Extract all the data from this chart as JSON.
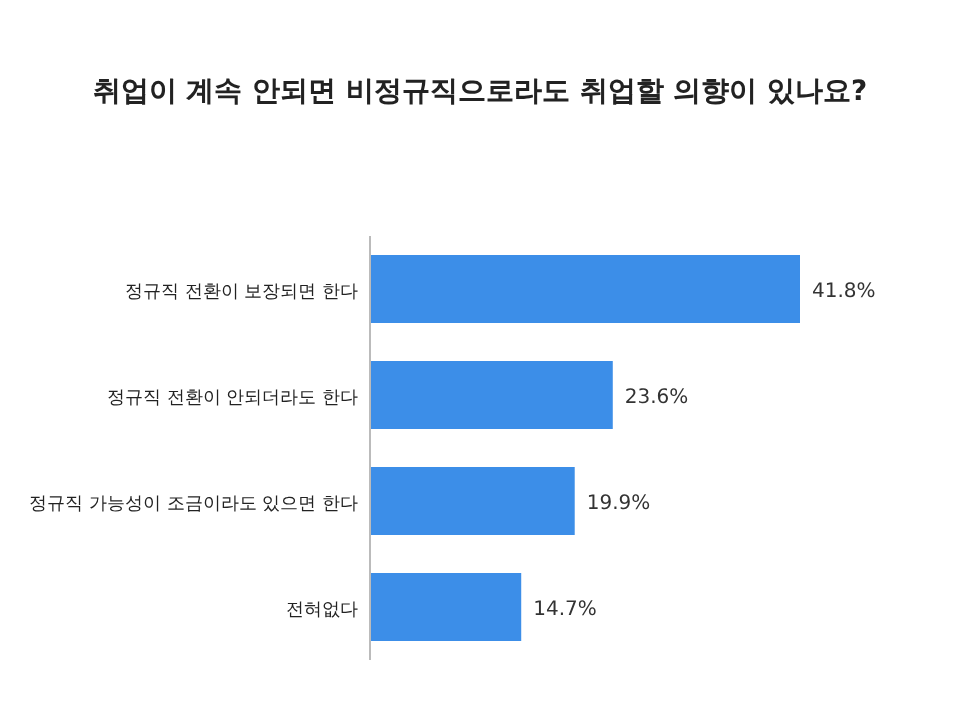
{
  "chart_data": {
    "type": "bar",
    "orientation": "horizontal",
    "title": "취업이 계속 안되면 비정규직으로라도 취업할 의향이 있나요?",
    "categories": [
      "정규직 전환이 보장되면 한다",
      "정규직 전환이 안되더라도 한다",
      "정규직 가능성이 조금이라도 있으면 한다",
      "전혀없다"
    ],
    "values": [
      41.8,
      23.6,
      19.9,
      14.7
    ],
    "value_labels": [
      "41.8%",
      "23.6%",
      "19.9%",
      "14.7%"
    ],
    "color": "#3c8ee8"
  }
}
